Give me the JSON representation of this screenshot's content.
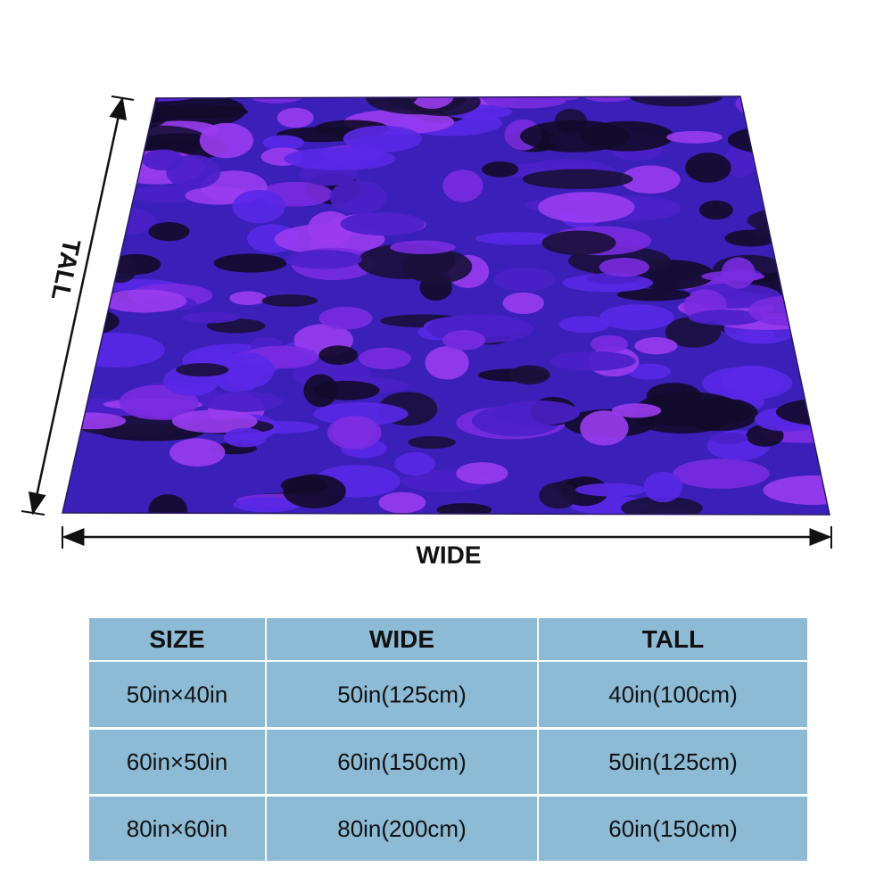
{
  "labels": {
    "tall": "TALL",
    "wide": "WIDE"
  },
  "table": {
    "header": [
      "SIZE",
      "WIDE",
      "TALL"
    ],
    "rows": [
      [
        "50in×40in",
        "50in(125cm)",
        "40in(100cm)"
      ],
      [
        "60in×50in",
        "60in(150cm)",
        "50in(125cm)"
      ],
      [
        "80in×60in",
        "80in(200cm)",
        "60in(150cm)"
      ]
    ]
  }
}
